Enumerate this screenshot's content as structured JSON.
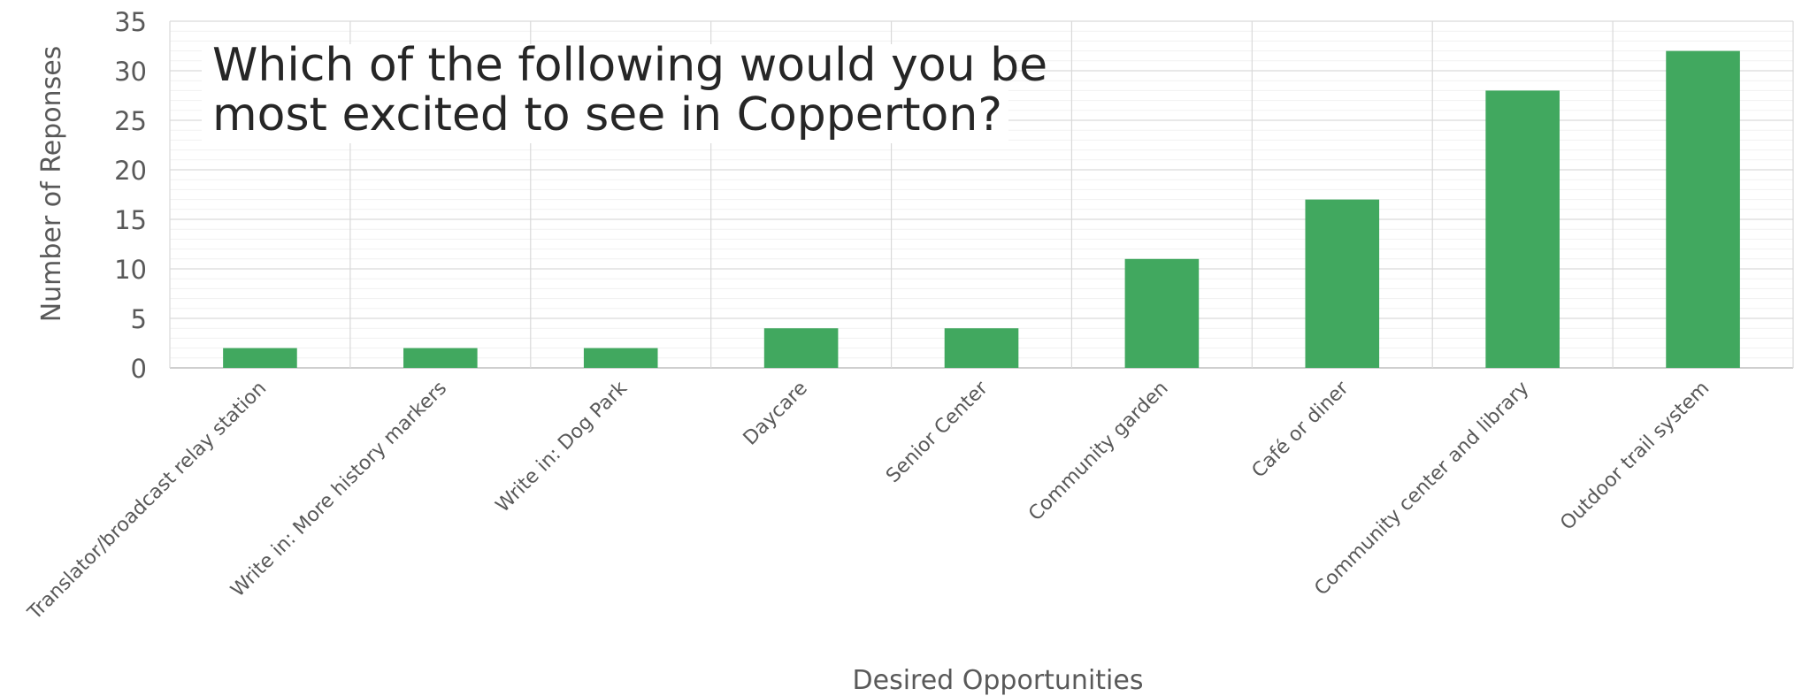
{
  "chart_data": {
    "type": "bar",
    "title": "Which of the following would you be most excited to see in Copperton?",
    "title_lines": [
      "Which of the following would you be",
      "most excited to see in Copperton?"
    ],
    "xlabel": "Desired Opportunities",
    "ylabel": "Number of Reponses",
    "categories": [
      "Translator/broadcast relay station",
      "Write in: More history markers",
      "Write in: Dog Park",
      "Daycare",
      "Senior Center",
      "Community garden",
      "Café or diner",
      "Community center and library",
      "Outdoor trail system"
    ],
    "values": [
      2,
      2,
      2,
      4,
      4,
      11,
      17,
      28,
      32
    ],
    "ylim": [
      0,
      35
    ],
    "yticks": [
      0,
      5,
      10,
      15,
      20,
      25,
      30,
      35
    ],
    "grid": true,
    "legend": "none",
    "bar_color": "#41a85f"
  }
}
